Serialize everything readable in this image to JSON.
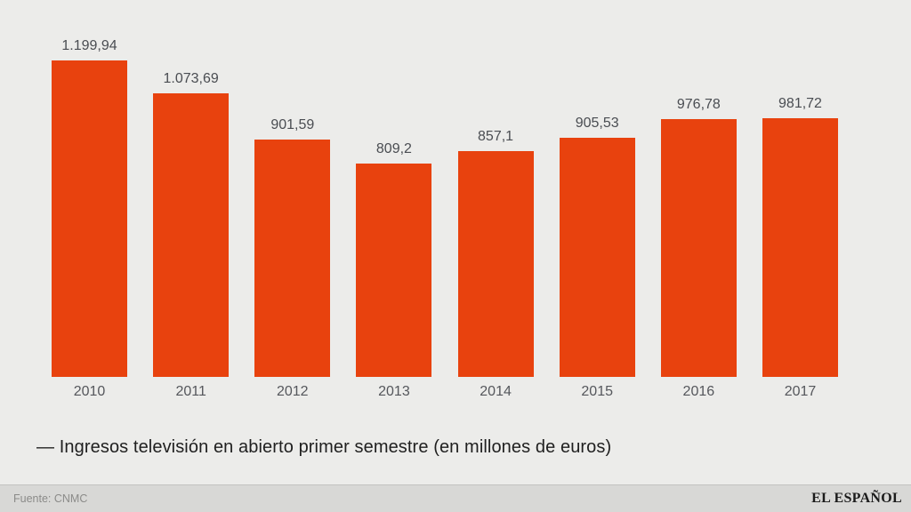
{
  "chart_data": {
    "type": "bar",
    "categories": [
      "2010",
      "2011",
      "2012",
      "2013",
      "2014",
      "2015",
      "2016",
      "2017"
    ],
    "values": [
      1199.94,
      1073.69,
      901.59,
      809.2,
      857.1,
      905.53,
      976.78,
      981.72
    ],
    "value_labels": [
      "1.199,94",
      "1.073,69",
      "901,59",
      "809,2",
      "857,1",
      "905,53",
      "976,78",
      "981,72"
    ],
    "title": "",
    "xlabel": "",
    "ylabel": "",
    "ylim": [
      0,
      1199.94
    ],
    "grid": false,
    "legend_position": "bottom-left",
    "legend_entries": [
      "Ingresos televisión en abierto primer semestre (en millones de euros)"
    ],
    "bar_color": "#E8420E"
  },
  "caption": {
    "text": "— Ingresos televisión en abierto primer semestre (en millones de euros)"
  },
  "footer": {
    "source_label": "Fuente: CNMC",
    "brand": "EL ESPAÑOL"
  },
  "colors": {
    "background": "#ECECEA",
    "bar": "#E8420E",
    "value_label": "#4a4d52",
    "axis_label": "#55575c",
    "caption_text": "#1f1f1f",
    "footer_background": "#D8D8D6",
    "footer_border": "#c2c2c0",
    "source_text": "#8b8b89",
    "brand_text": "#1b1b1b"
  }
}
